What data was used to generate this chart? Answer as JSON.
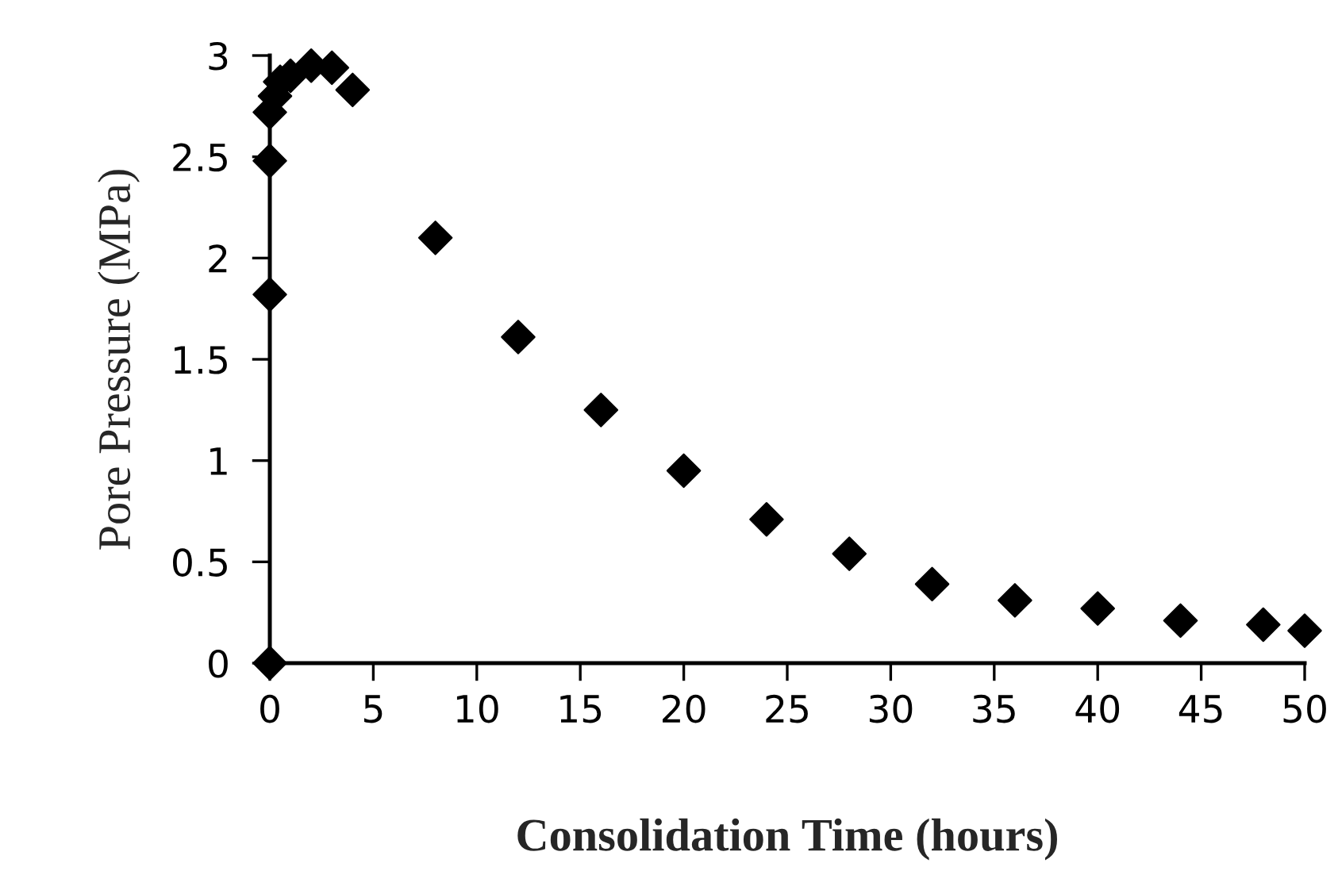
{
  "chart_data": {
    "type": "scatter",
    "xlabel": "Consolidation Time (hours)",
    "ylabel": "Pore Pressure (MPa)",
    "x": [
      0,
      0,
      0,
      0,
      0.25,
      0.5,
      1,
      2,
      3,
      4,
      8,
      12,
      16,
      20,
      24,
      28,
      32,
      36,
      40,
      44,
      48,
      50
    ],
    "series": [
      {
        "color": "#000000",
        "values": [
          0,
          1.82,
          2.48,
          2.72,
          2.8,
          2.87,
          2.9,
          2.95,
          2.94,
          2.83,
          2.1,
          1.61,
          1.25,
          0.95,
          0.71,
          0.54,
          0.39,
          0.31,
          0.27,
          0.21,
          0.19,
          0.16
        ]
      }
    ],
    "xlim": [
      0,
      50
    ],
    "ylim": [
      0,
      3
    ],
    "xticks": [
      0,
      5,
      10,
      15,
      20,
      25,
      30,
      35,
      40,
      45,
      50
    ],
    "yticks": [
      0,
      0.5,
      1,
      1.5,
      2,
      2.5,
      3
    ],
    "marker": "diamond",
    "grid": false,
    "legend": false
  }
}
